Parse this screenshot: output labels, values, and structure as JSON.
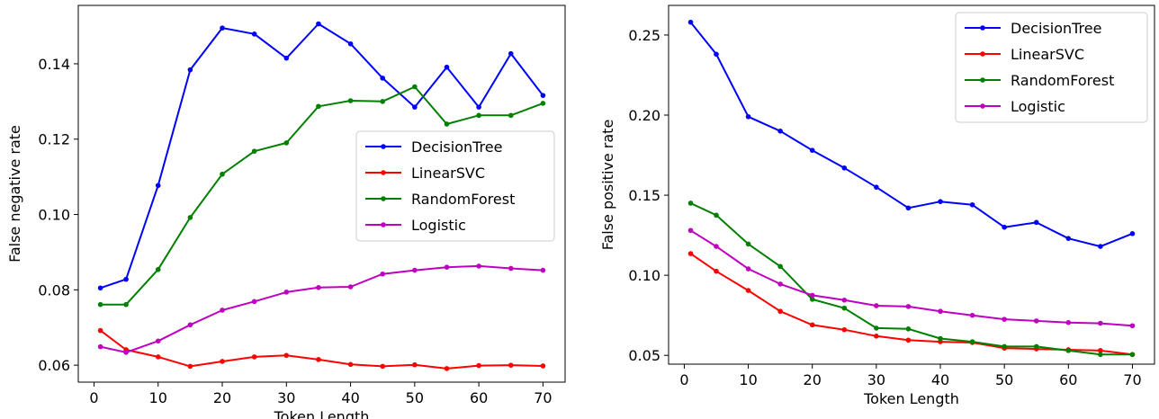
{
  "chart_data": [
    {
      "type": "line",
      "xlabel": "Token Length",
      "ylabel": "False negative rate",
      "xlim": [
        -2.45,
        73.45
      ],
      "ylim": [
        0.0555,
        0.1555
      ],
      "xticks": [
        0,
        10,
        20,
        30,
        40,
        50,
        60,
        70
      ],
      "yticks": [
        0.06,
        0.08,
        0.1,
        0.12,
        0.14
      ],
      "ytick_labels": [
        "0.06",
        "0.08",
        "0.10",
        "0.12",
        "0.14"
      ],
      "legend_position": "center-right",
      "x": [
        1,
        5,
        10,
        15,
        20,
        25,
        30,
        35,
        40,
        45,
        50,
        55,
        60,
        65,
        70
      ],
      "series": [
        {
          "name": "DecisionTree",
          "color": "#0000ff",
          "values": [
            0.0805,
            0.0828,
            0.1077,
            0.1384,
            0.1495,
            0.1479,
            0.1415,
            0.1506,
            0.1453,
            0.1362,
            0.1285,
            0.1391,
            0.1285,
            0.1427,
            0.1316
          ]
        },
        {
          "name": "LinearSVC",
          "color": "#ff0000",
          "values": [
            0.0692,
            0.0641,
            0.0622,
            0.0597,
            0.061,
            0.0622,
            0.0626,
            0.0615,
            0.0602,
            0.0597,
            0.0601,
            0.0591,
            0.0599,
            0.06,
            0.0598
          ]
        },
        {
          "name": "RandomForest",
          "color": "#008000",
          "values": [
            0.0761,
            0.0761,
            0.0854,
            0.0992,
            0.1107,
            0.1168,
            0.119,
            0.1287,
            0.1302,
            0.13,
            0.1339,
            0.124,
            0.1263,
            0.1263,
            0.1295
          ]
        },
        {
          "name": "Logistic",
          "color": "#bf00bf",
          "values": [
            0.0649,
            0.0634,
            0.0664,
            0.0707,
            0.0746,
            0.0769,
            0.0794,
            0.0806,
            0.0808,
            0.0842,
            0.0852,
            0.086,
            0.0863,
            0.0857,
            0.0852
          ]
        }
      ]
    },
    {
      "type": "line",
      "xlabel": "Token Length",
      "ylabel": "False positive rate",
      "xlim": [
        -2.45,
        73.45
      ],
      "ylim": [
        0.0445,
        0.2685
      ],
      "xticks": [
        0,
        10,
        20,
        30,
        40,
        50,
        60,
        70
      ],
      "yticks": [
        0.05,
        0.1,
        0.15,
        0.2,
        0.25
      ],
      "ytick_labels": [
        "0.05",
        "0.10",
        "0.15",
        "0.20",
        "0.25"
      ],
      "legend_position": "top-right",
      "x": [
        1,
        5,
        10,
        15,
        20,
        25,
        30,
        35,
        40,
        45,
        50,
        55,
        60,
        65,
        70
      ],
      "series": [
        {
          "name": "DecisionTree",
          "color": "#0000ff",
          "values": [
            0.258,
            0.238,
            0.199,
            0.19,
            0.178,
            0.167,
            0.155,
            0.142,
            0.146,
            0.144,
            0.13,
            0.133,
            0.123,
            0.118,
            0.126
          ]
        },
        {
          "name": "LinearSVC",
          "color": "#ff0000",
          "values": [
            0.1135,
            0.1025,
            0.0905,
            0.0775,
            0.069,
            0.066,
            0.062,
            0.0595,
            0.0585,
            0.058,
            0.0545,
            0.054,
            0.0535,
            0.053,
            0.0505
          ]
        },
        {
          "name": "RandomForest",
          "color": "#008000",
          "values": [
            0.145,
            0.1375,
            0.1195,
            0.1055,
            0.085,
            0.0795,
            0.067,
            0.0665,
            0.0605,
            0.0585,
            0.0555,
            0.0555,
            0.053,
            0.0505,
            0.0505
          ]
        },
        {
          "name": "Logistic",
          "color": "#bf00bf",
          "values": [
            0.128,
            0.118,
            0.104,
            0.0945,
            0.0875,
            0.0845,
            0.081,
            0.0805,
            0.0775,
            0.075,
            0.0725,
            0.0715,
            0.0705,
            0.07,
            0.0685
          ]
        }
      ]
    }
  ]
}
